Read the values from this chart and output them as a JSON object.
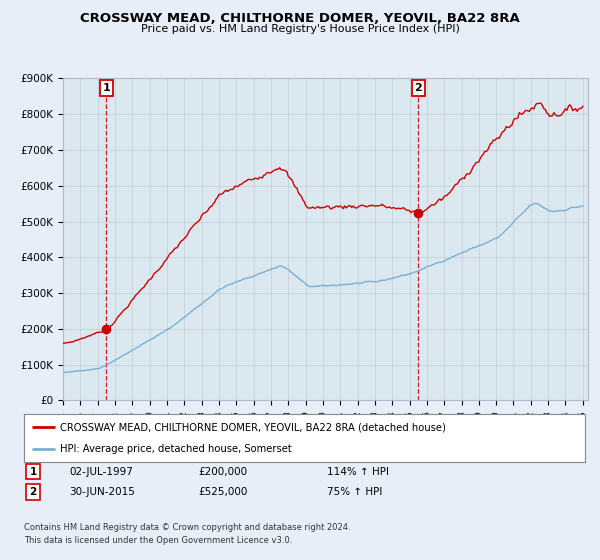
{
  "title": "CROSSWAY MEAD, CHILTHORNE DOMER, YEOVIL, BA22 8RA",
  "subtitle": "Price paid vs. HM Land Registry's House Price Index (HPI)",
  "legend_line1": "CROSSWAY MEAD, CHILTHORNE DOMER, YEOVIL, BA22 8RA (detached house)",
  "legend_line2": "HPI: Average price, detached house, Somerset",
  "annotation1_label": "1",
  "annotation1_date": "02-JUL-1997",
  "annotation1_price": 200000,
  "annotation1_hpi": "114% ↑ HPI",
  "annotation2_label": "2",
  "annotation2_date": "30-JUN-2015",
  "annotation2_price": 525000,
  "annotation2_hpi": "75% ↑ HPI",
  "footer1": "Contains HM Land Registry data © Crown copyright and database right 2024.",
  "footer2": "This data is licensed under the Open Government Licence v3.0.",
  "hpi_color": "#7ab0d4",
  "price_color": "#cc0000",
  "annotation_color": "#cc0000",
  "background_color": "#e8eef8",
  "plot_bg_color": "#dce8f0",
  "ylim": [
    0,
    900000
  ],
  "xlim_start": 1995.0,
  "xlim_end": 2025.3,
  "sale1_x": 1997.5,
  "sale1_y": 200000,
  "sale2_x": 2015.5,
  "sale2_y": 525000,
  "yticks": [
    0,
    100000,
    200000,
    300000,
    400000,
    500000,
    600000,
    700000,
    800000,
    900000
  ],
  "ytick_labels": [
    "£0",
    "£100K",
    "£200K",
    "£300K",
    "£400K",
    "£500K",
    "£600K",
    "£700K",
    "£800K",
    "£900K"
  ],
  "xticks": [
    1995,
    1996,
    1997,
    1998,
    1999,
    2000,
    2001,
    2002,
    2003,
    2004,
    2005,
    2006,
    2007,
    2008,
    2009,
    2010,
    2011,
    2012,
    2013,
    2014,
    2015,
    2016,
    2017,
    2018,
    2019,
    2020,
    2021,
    2022,
    2023,
    2024,
    2025
  ]
}
